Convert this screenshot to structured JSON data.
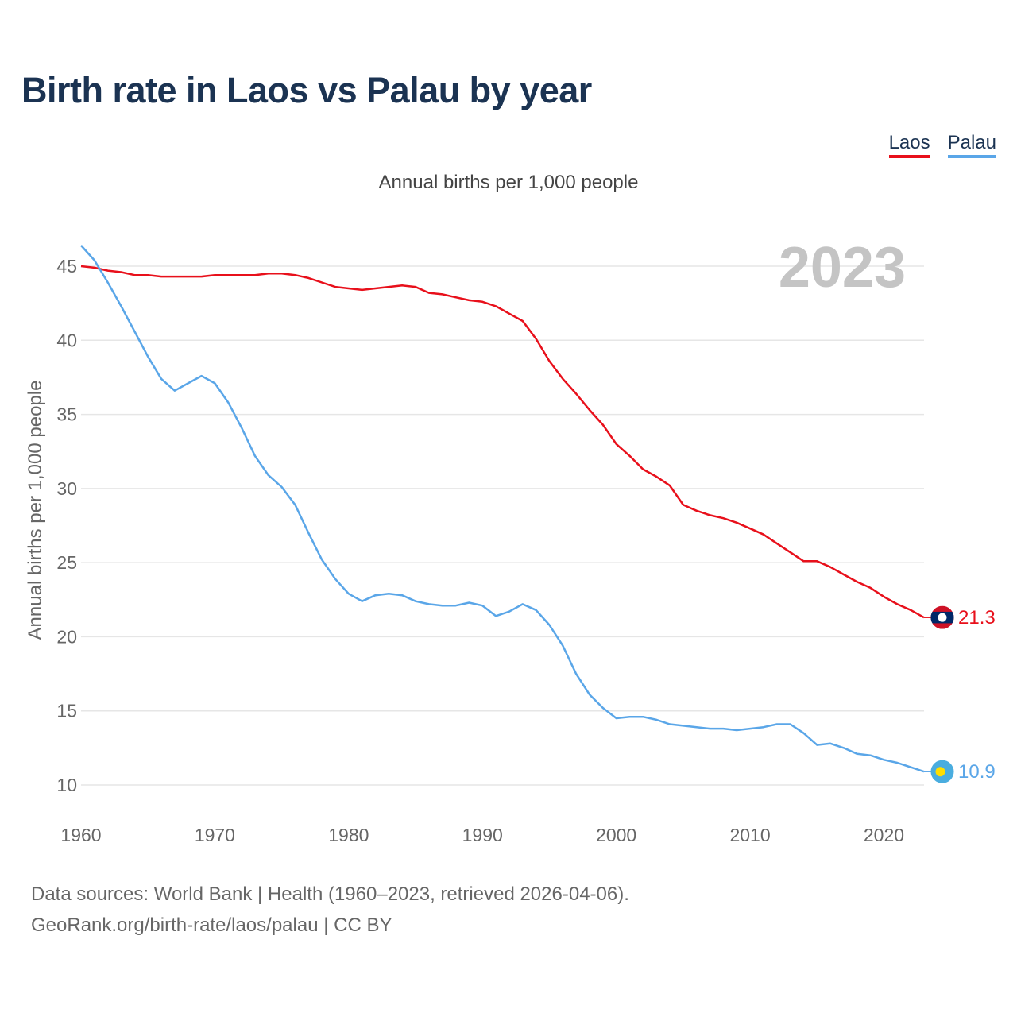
{
  "title": "Birth rate in Laos vs Palau by year",
  "subtitle": "Annual births per 1,000 people",
  "legend": [
    {
      "label": "Laos",
      "color": "#e8101b"
    },
    {
      "label": "Palau",
      "color": "#5aa6e8"
    }
  ],
  "year_label": "2023",
  "footer": {
    "line1": "Data sources: World Bank | Health (1960–2023, retrieved 2026-04-06).",
    "line2": "GeoRank.org/birth-rate/laos/palau | CC BY"
  },
  "chart_data": {
    "type": "line",
    "title": "Birth rate in Laos vs Palau by year",
    "ylabel": "Annual births per 1,000 people",
    "xlabel": "",
    "xlim": [
      1960,
      2023
    ],
    "ylim": [
      10,
      46
    ],
    "x_ticks": [
      1960,
      1970,
      1980,
      1990,
      2000,
      2010,
      2020
    ],
    "y_ticks": [
      10,
      15,
      20,
      25,
      30,
      35,
      40,
      45
    ],
    "grid": true,
    "x": [
      1960,
      1961,
      1962,
      1963,
      1964,
      1965,
      1966,
      1967,
      1968,
      1969,
      1970,
      1971,
      1972,
      1973,
      1974,
      1975,
      1976,
      1977,
      1978,
      1979,
      1980,
      1981,
      1982,
      1983,
      1984,
      1985,
      1986,
      1987,
      1988,
      1989,
      1990,
      1991,
      1992,
      1993,
      1994,
      1995,
      1996,
      1997,
      1998,
      1999,
      2000,
      2001,
      2002,
      2003,
      2004,
      2005,
      2006,
      2007,
      2008,
      2009,
      2010,
      2011,
      2012,
      2013,
      2014,
      2015,
      2016,
      2017,
      2018,
      2019,
      2020,
      2021,
      2022,
      2023
    ],
    "series": [
      {
        "name": "Laos",
        "color": "#e8101b",
        "end_label": "21.3",
        "values": [
          45.0,
          44.9,
          44.7,
          44.6,
          44.4,
          44.4,
          44.3,
          44.3,
          44.3,
          44.3,
          44.4,
          44.4,
          44.4,
          44.4,
          44.5,
          44.5,
          44.4,
          44.2,
          43.9,
          43.6,
          43.5,
          43.4,
          43.5,
          43.6,
          43.7,
          43.6,
          43.2,
          43.1,
          42.9,
          42.7,
          42.6,
          42.3,
          41.8,
          41.3,
          40.1,
          38.6,
          37.4,
          36.4,
          35.3,
          34.3,
          33.0,
          32.2,
          31.3,
          30.8,
          30.2,
          28.9,
          28.5,
          28.2,
          28.0,
          27.7,
          27.3,
          26.9,
          26.3,
          25.7,
          25.1,
          25.1,
          24.7,
          24.2,
          23.7,
          23.3,
          22.7,
          22.2,
          21.8,
          21.3
        ]
      },
      {
        "name": "Palau",
        "color": "#5aa6e8",
        "end_label": "10.9",
        "values": [
          46.4,
          45.4,
          43.9,
          42.3,
          40.6,
          38.9,
          37.4,
          36.6,
          37.1,
          37.6,
          37.1,
          35.8,
          34.1,
          32.2,
          30.9,
          30.1,
          28.9,
          27.0,
          25.2,
          23.9,
          22.9,
          22.4,
          22.8,
          22.9,
          22.8,
          22.4,
          22.2,
          22.1,
          22.1,
          22.3,
          22.1,
          21.4,
          21.7,
          22.2,
          21.8,
          20.8,
          19.4,
          17.5,
          16.1,
          15.2,
          14.5,
          14.6,
          14.6,
          14.4,
          14.1,
          14.0,
          13.9,
          13.8,
          13.8,
          13.7,
          13.8,
          13.9,
          14.1,
          14.1,
          13.5,
          12.7,
          12.8,
          12.5,
          12.1,
          12.0,
          11.7,
          11.5,
          11.2,
          10.9
        ]
      }
    ]
  }
}
